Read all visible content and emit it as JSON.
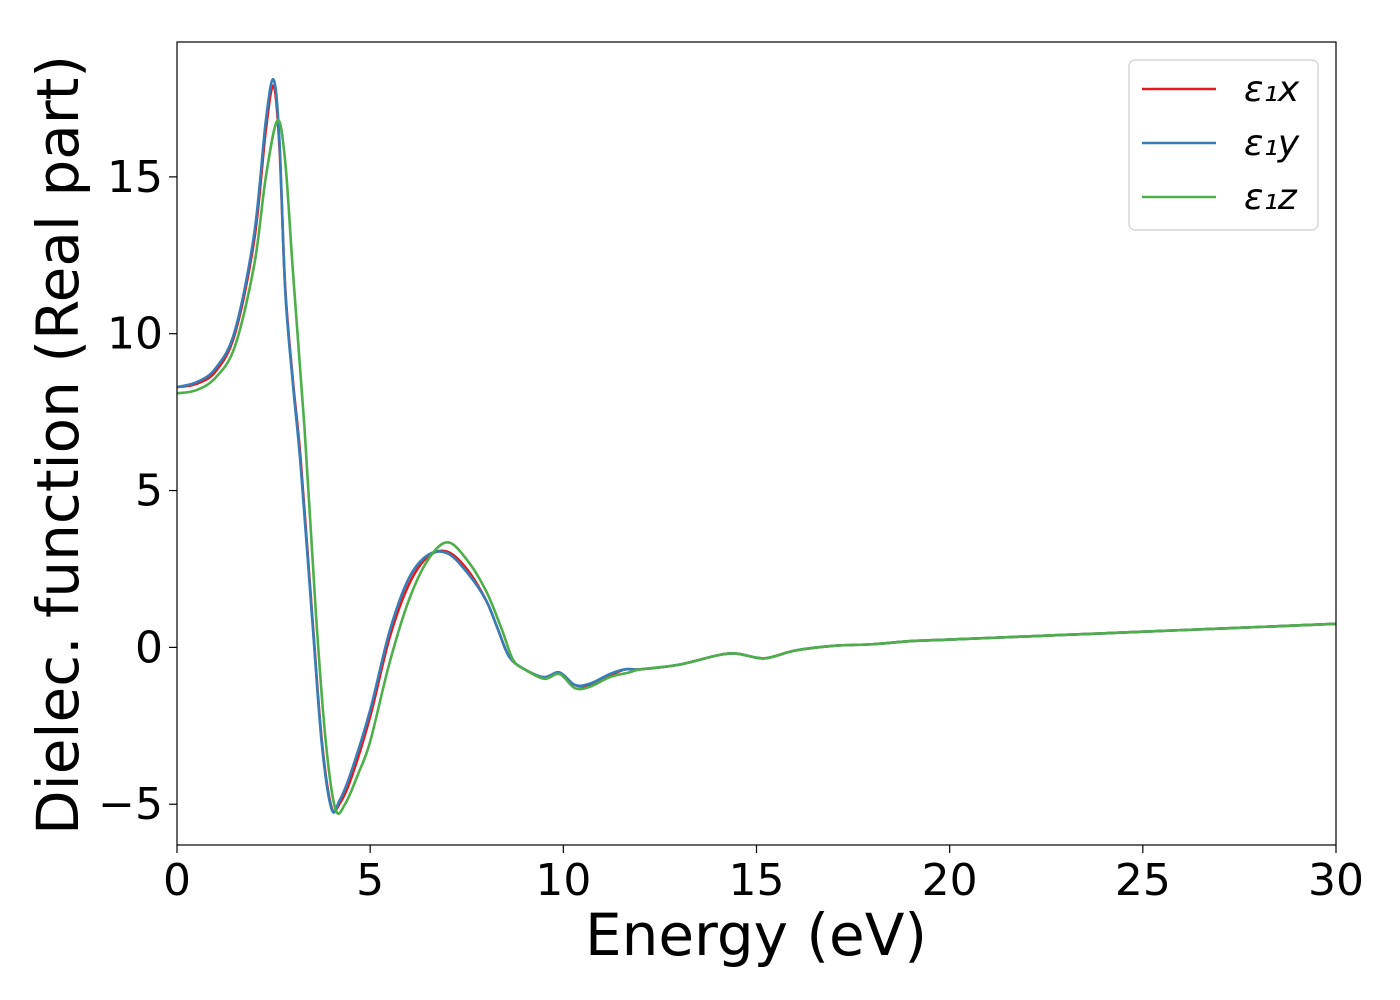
{
  "chart_data": {
    "type": "line",
    "title": "",
    "xlabel": "Energy (eV)",
    "ylabel": "Dielec. function (Real part)",
    "xlim": [
      0,
      30
    ],
    "ylim": [
      -6.3,
      19.3
    ],
    "xticks": [
      0,
      5,
      10,
      15,
      20,
      25,
      30
    ],
    "yticks": [
      -5,
      0,
      5,
      10,
      15
    ],
    "xtick_labels": [
      "0",
      "5",
      "10",
      "15",
      "20",
      "25",
      "30"
    ],
    "ytick_labels": [
      "−5",
      "0",
      "5",
      "10",
      "15"
    ],
    "grid": false,
    "legend_position": "top-right",
    "series": [
      {
        "name": "ε₁x",
        "color": "#e41a1c",
        "points": [
          [
            0,
            8.3
          ],
          [
            0.5,
            8.4
          ],
          [
            1.0,
            8.8
          ],
          [
            1.5,
            10.0
          ],
          [
            2.0,
            13.0
          ],
          [
            2.3,
            16.5
          ],
          [
            2.5,
            17.9
          ],
          [
            2.65,
            16.0
          ],
          [
            2.8,
            11.5
          ],
          [
            3.0,
            8.5
          ],
          [
            3.2,
            6.0
          ],
          [
            3.5,
            1.0
          ],
          [
            3.75,
            -3.0
          ],
          [
            4.0,
            -5.1
          ],
          [
            4.2,
            -5.0
          ],
          [
            4.5,
            -4.2
          ],
          [
            5.0,
            -2.2
          ],
          [
            5.5,
            0.3
          ],
          [
            6.0,
            2.0
          ],
          [
            6.5,
            2.9
          ],
          [
            7.0,
            3.05
          ],
          [
            7.5,
            2.5
          ],
          [
            8.0,
            1.5
          ],
          [
            8.3,
            0.6
          ],
          [
            8.6,
            -0.3
          ],
          [
            9.0,
            -0.7
          ],
          [
            9.5,
            -0.95
          ],
          [
            9.9,
            -0.8
          ],
          [
            10.3,
            -1.2
          ],
          [
            10.7,
            -1.2
          ],
          [
            11.2,
            -0.9
          ],
          [
            11.6,
            -0.7
          ],
          [
            12.0,
            -0.7
          ],
          [
            13.0,
            -0.55
          ],
          [
            14.0,
            -0.25
          ],
          [
            14.5,
            -0.2
          ],
          [
            15.2,
            -0.35
          ],
          [
            16.0,
            -0.1
          ],
          [
            17.0,
            0.05
          ],
          [
            18.0,
            0.1
          ],
          [
            19.0,
            0.2
          ],
          [
            20.0,
            0.25
          ],
          [
            22.0,
            0.35
          ],
          [
            24.0,
            0.45
          ],
          [
            26.0,
            0.55
          ],
          [
            28.0,
            0.65
          ],
          [
            30.0,
            0.75
          ]
        ]
      },
      {
        "name": "ε₁y",
        "color": "#377eb8",
        "points": [
          [
            0,
            8.3
          ],
          [
            0.5,
            8.45
          ],
          [
            1.0,
            8.9
          ],
          [
            1.5,
            10.1
          ],
          [
            2.0,
            13.2
          ],
          [
            2.3,
            16.8
          ],
          [
            2.5,
            18.1
          ],
          [
            2.65,
            16.2
          ],
          [
            2.8,
            11.4
          ],
          [
            3.0,
            8.4
          ],
          [
            3.2,
            5.8
          ],
          [
            3.5,
            0.9
          ],
          [
            3.75,
            -3.1
          ],
          [
            4.0,
            -5.15
          ],
          [
            4.2,
            -4.9
          ],
          [
            4.5,
            -4.0
          ],
          [
            5.0,
            -2.0
          ],
          [
            5.5,
            0.5
          ],
          [
            6.0,
            2.2
          ],
          [
            6.5,
            2.95
          ],
          [
            7.0,
            3.0
          ],
          [
            7.5,
            2.4
          ],
          [
            8.0,
            1.5
          ],
          [
            8.3,
            0.6
          ],
          [
            8.6,
            -0.3
          ],
          [
            9.0,
            -0.7
          ],
          [
            9.5,
            -0.95
          ],
          [
            9.9,
            -0.8
          ],
          [
            10.3,
            -1.2
          ],
          [
            10.7,
            -1.15
          ],
          [
            11.2,
            -0.85
          ],
          [
            11.6,
            -0.7
          ],
          [
            12.0,
            -0.7
          ],
          [
            13.0,
            -0.55
          ],
          [
            14.0,
            -0.25
          ],
          [
            14.5,
            -0.2
          ],
          [
            15.2,
            -0.35
          ],
          [
            16.0,
            -0.1
          ],
          [
            17.0,
            0.05
          ],
          [
            18.0,
            0.1
          ],
          [
            19.0,
            0.2
          ],
          [
            20.0,
            0.25
          ],
          [
            22.0,
            0.35
          ],
          [
            24.0,
            0.45
          ],
          [
            26.0,
            0.55
          ],
          [
            28.0,
            0.65
          ],
          [
            30.0,
            0.75
          ]
        ]
      },
      {
        "name": "ε₁z",
        "color": "#4daf4a",
        "points": [
          [
            0,
            8.1
          ],
          [
            0.5,
            8.2
          ],
          [
            1.0,
            8.6
          ],
          [
            1.5,
            9.6
          ],
          [
            2.0,
            12.2
          ],
          [
            2.3,
            15.0
          ],
          [
            2.6,
            16.8
          ],
          [
            2.8,
            15.5
          ],
          [
            3.0,
            12.0
          ],
          [
            3.3,
            7.0
          ],
          [
            3.6,
            1.0
          ],
          [
            3.85,
            -3.0
          ],
          [
            4.1,
            -5.15
          ],
          [
            4.35,
            -5.0
          ],
          [
            4.7,
            -4.0
          ],
          [
            5.0,
            -3.0
          ],
          [
            5.5,
            -0.5
          ],
          [
            6.0,
            1.5
          ],
          [
            6.5,
            2.8
          ],
          [
            7.0,
            3.35
          ],
          [
            7.5,
            2.8
          ],
          [
            8.0,
            1.8
          ],
          [
            8.4,
            0.6
          ],
          [
            8.7,
            -0.4
          ],
          [
            9.0,
            -0.7
          ],
          [
            9.5,
            -1.0
          ],
          [
            9.9,
            -0.85
          ],
          [
            10.3,
            -1.3
          ],
          [
            10.7,
            -1.25
          ],
          [
            11.2,
            -0.95
          ],
          [
            11.7,
            -0.8
          ],
          [
            12.0,
            -0.7
          ],
          [
            13.0,
            -0.55
          ],
          [
            14.0,
            -0.25
          ],
          [
            14.5,
            -0.2
          ],
          [
            15.2,
            -0.35
          ],
          [
            16.0,
            -0.1
          ],
          [
            17.0,
            0.05
          ],
          [
            18.0,
            0.1
          ],
          [
            19.0,
            0.2
          ],
          [
            20.0,
            0.25
          ],
          [
            22.0,
            0.35
          ],
          [
            24.0,
            0.45
          ],
          [
            26.0,
            0.55
          ],
          [
            28.0,
            0.65
          ],
          [
            30.0,
            0.75
          ]
        ]
      }
    ]
  }
}
